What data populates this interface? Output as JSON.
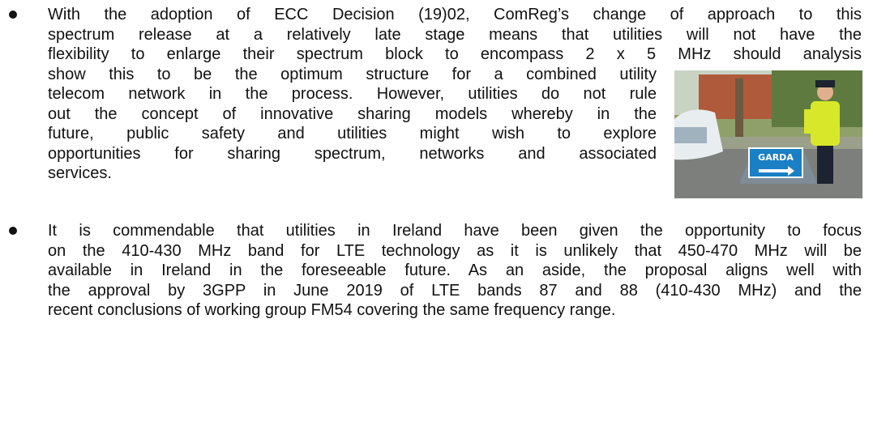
{
  "bullets": [
    {
      "lines": [
        "With the adoption of ECC Decision (19)02, ComReg’s change of approach to this",
        "spectrum release at a relatively late stage means that utilities will not have the",
        "flexibility to enlarge their spectrum block to encompass 2 x 5 MHz should analysis",
        "show this to be the optimum structure for a combined utility",
        "telecom network in the process.  However, utilities do not rule",
        "out the concept of innovative sharing models whereby in the",
        "future, public safety and utilities might wish to explore",
        "opportunities for sharing spectrum, networks and associated",
        "services."
      ]
    },
    {
      "lines": [
        "It is commendable that utilities in Ireland have been given the opportunity to focus",
        "on the 410-430 MHz band for LTE technology as it is unlikely that 450-470 MHz will be",
        "available in Ireland in the foreseeable future. As an aside, the proposal aligns well with",
        "the approval by 3GPP in June 2019 of LTE bands 87 and 88 (410-430 MHz) and the",
        "recent conclusions of working group FM54 covering the same frequency range."
      ]
    }
  ],
  "image": {
    "sign_text": "GARDA"
  }
}
